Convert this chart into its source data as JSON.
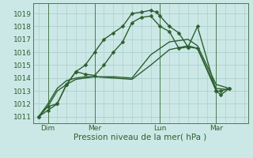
{
  "bg_color": "#cce8e6",
  "grid_color": "#aad0cc",
  "line_color": "#2d6030",
  "vline_color": "#4a7a50",
  "xlabel": "Pression niveau de la mer( hPa )",
  "xlabel_fontsize": 7.5,
  "tick_fontsize": 6.5,
  "ylim": [
    1010.5,
    1019.8
  ],
  "xlim": [
    -0.3,
    11.2
  ],
  "yticks": [
    1011,
    1012,
    1013,
    1014,
    1015,
    1016,
    1017,
    1018,
    1019
  ],
  "day_labels": [
    "Dim",
    "Mer",
    "Lun",
    "Mar"
  ],
  "day_positions": [
    0.5,
    3.0,
    6.5,
    9.5
  ],
  "vline_positions": [
    0.5,
    3.0,
    6.5,
    9.5
  ],
  "series": [
    {
      "x": [
        0.0,
        0.5,
        1.0,
        1.5,
        2.0,
        2.5,
        3.0,
        3.5,
        4.0,
        4.5,
        5.0,
        5.5,
        6.0,
        6.3,
        6.5,
        7.0,
        7.5,
        8.0,
        8.5,
        9.5,
        9.75,
        10.2
      ],
      "y": [
        1011.0,
        1011.8,
        1012.0,
        1013.5,
        1014.5,
        1015.0,
        1016.0,
        1017.0,
        1017.5,
        1018.0,
        1019.0,
        1019.1,
        1019.25,
        1019.1,
        1018.8,
        1018.0,
        1017.5,
        1016.4,
        1016.3,
        1013.0,
        1012.7,
        1013.2
      ],
      "marker": "D",
      "markersize": 2.5,
      "linewidth": 1.0
    },
    {
      "x": [
        0.0,
        0.5,
        1.0,
        1.5,
        2.0,
        2.5,
        3.0,
        3.5,
        4.0,
        4.5,
        5.0,
        5.5,
        6.0,
        6.5,
        7.0,
        7.5,
        8.0,
        8.5,
        9.5,
        9.75,
        10.2
      ],
      "y": [
        1011.0,
        1011.5,
        1012.0,
        1013.5,
        1014.5,
        1014.3,
        1014.2,
        1015.0,
        1016.0,
        1016.8,
        1018.3,
        1018.7,
        1018.8,
        1018.0,
        1017.6,
        1016.3,
        1016.4,
        1018.0,
        1013.0,
        1013.0,
        1013.2
      ],
      "marker": "D",
      "markersize": 2.5,
      "linewidth": 1.0
    },
    {
      "x": [
        0.0,
        0.5,
        1.0,
        1.5,
        2.0,
        2.5,
        3.0,
        4.0,
        5.0,
        6.0,
        7.0,
        8.0,
        8.5,
        9.5,
        10.2
      ],
      "y": [
        1011.0,
        1012.0,
        1013.2,
        1013.8,
        1014.0,
        1014.1,
        1014.1,
        1014.1,
        1014.0,
        1015.8,
        1016.8,
        1017.0,
        1016.5,
        1013.5,
        1013.2
      ],
      "marker": null,
      "markersize": 0,
      "linewidth": 1.0
    },
    {
      "x": [
        0.0,
        0.5,
        1.0,
        1.5,
        2.0,
        2.5,
        3.0,
        4.0,
        5.0,
        6.0,
        7.0,
        8.0,
        8.5,
        9.5,
        10.2
      ],
      "y": [
        1011.0,
        1011.8,
        1013.0,
        1013.5,
        1013.9,
        1014.0,
        1014.1,
        1014.0,
        1013.9,
        1015.0,
        1016.2,
        1016.5,
        1016.3,
        1013.2,
        1013.1
      ],
      "marker": null,
      "markersize": 0,
      "linewidth": 1.0
    }
  ]
}
